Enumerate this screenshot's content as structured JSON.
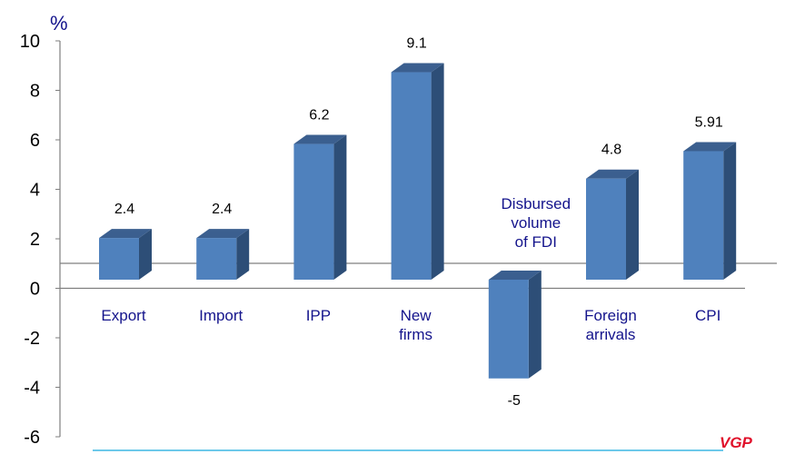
{
  "chart_data": {
    "type": "bar",
    "unit_label": "%",
    "categories": [
      [
        "Export"
      ],
      [
        "Import"
      ],
      [
        "IPP"
      ],
      [
        "New",
        "firms"
      ],
      [
        "Disbursed",
        "volume",
        "of FDI"
      ],
      [
        "Foreign",
        "arrivals"
      ],
      [
        "CPI"
      ]
    ],
    "values": [
      2.4,
      2.4,
      6.2,
      9.1,
      -5,
      4.8,
      5.91
    ],
    "value_labels": [
      "2.4",
      "2.4",
      "6.2",
      "9.1",
      "-5",
      "4.8",
      "5.91"
    ],
    "ylim": [
      -6,
      10
    ],
    "yticks": [
      10,
      8,
      6,
      4,
      2,
      0,
      -2,
      -4,
      -6
    ],
    "bar_style": "3d",
    "colors": {
      "bar_front": "#4f81bd",
      "bar_side": "#2d4e77",
      "bar_top": "#3b5f8f",
      "axis": "#7f7f7f",
      "bottom_line": "#3db7e4",
      "category_text": "#14148c",
      "watermark": "#e0102a"
    },
    "watermark": "VGP"
  }
}
